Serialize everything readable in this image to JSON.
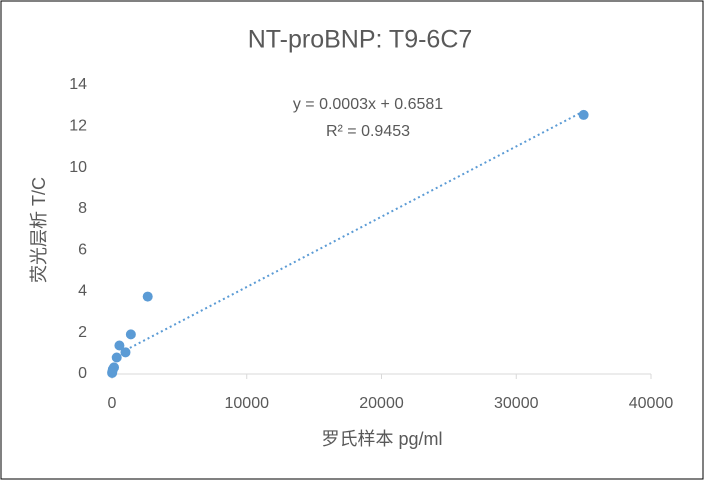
{
  "chart_data": {
    "type": "scatter",
    "title": "NT-proBNP: T9-6C7",
    "x_label": "罗氏样本 pg/ml",
    "y_label": "荧光层析 T/C",
    "trendline_equation": "y = 0.0003x + 0.6581",
    "trendline_r2": "R² = 0.9453",
    "series": [
      {
        "name": "T/C",
        "color": "#5b9bd5",
        "x": [
          35000,
          2650,
          1400,
          1000,
          550,
          350,
          150,
          60,
          20,
          10
        ],
        "values": [
          12.55,
          3.75,
          1.92,
          1.05,
          1.38,
          0.8,
          0.32,
          0.22,
          0.1,
          0.05
        ]
      }
    ],
    "xlim": [
      0,
      40000
    ],
    "xticks": [
      0,
      10000,
      20000,
      30000,
      40000
    ],
    "ylim": [
      0,
      14
    ],
    "yticks": [
      0,
      2,
      4,
      6,
      8,
      10,
      12,
      14
    ],
    "grid": false,
    "trendline": true
  }
}
